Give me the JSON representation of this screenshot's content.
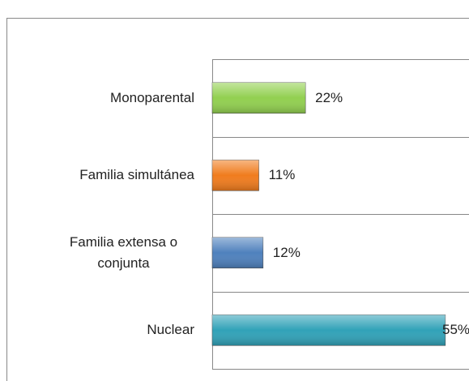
{
  "chart_data": {
    "type": "bar",
    "orientation": "horizontal",
    "categories": [
      "Monoparental",
      "Familia simultánea",
      "Familia extensa o conjunta",
      "Nuclear"
    ],
    "values": [
      22,
      11,
      12,
      55
    ],
    "value_labels": [
      "22%",
      "11%",
      "12%",
      "55%"
    ],
    "colors": [
      "#92d050",
      "#f07c1e",
      "#4f81bd",
      "#31a2b8"
    ],
    "xlim": [
      0,
      60
    ]
  }
}
